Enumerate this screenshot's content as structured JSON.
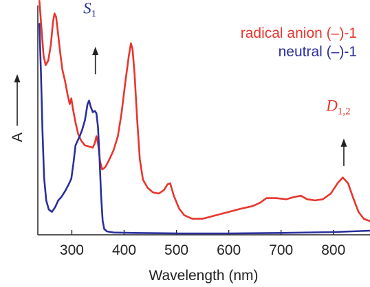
{
  "colors": {
    "series_red": "#e8352c",
    "series_blue": "#2a2f9c",
    "axis": "#222222",
    "text": "#222222"
  },
  "chart_data": {
    "type": "line",
    "xlabel": "Wavelength (nm)",
    "ylabel": "A",
    "xlim": [
      235,
      870
    ],
    "ylim": [
      0,
      1
    ],
    "x_ticks": [
      300,
      400,
      500,
      600,
      700,
      800
    ],
    "grid": false,
    "legend_position": "top-right",
    "series": [
      {
        "name": "radical anion (–)-1",
        "color": "#e8352c",
        "points": [
          [
            238,
            1.02
          ],
          [
            242,
            0.9
          ],
          [
            246,
            0.78
          ],
          [
            250,
            0.74
          ],
          [
            255,
            0.76
          ],
          [
            260,
            0.83
          ],
          [
            264,
            0.93
          ],
          [
            267,
            0.965
          ],
          [
            270,
            0.95
          ],
          [
            274,
            0.87
          ],
          [
            278,
            0.79
          ],
          [
            282,
            0.72
          ],
          [
            287,
            0.67
          ],
          [
            292,
            0.61
          ],
          [
            296,
            0.57
          ],
          [
            299,
            0.595
          ],
          [
            302,
            0.55
          ],
          [
            307,
            0.49
          ],
          [
            312,
            0.44
          ],
          [
            318,
            0.41
          ],
          [
            325,
            0.39
          ],
          [
            333,
            0.385
          ],
          [
            340,
            0.38
          ],
          [
            344,
            0.4
          ],
          [
            347,
            0.43
          ],
          [
            350,
            0.4
          ],
          [
            354,
            0.32
          ],
          [
            358,
            0.285
          ],
          [
            364,
            0.295
          ],
          [
            372,
            0.33
          ],
          [
            380,
            0.37
          ],
          [
            388,
            0.43
          ],
          [
            395,
            0.53
          ],
          [
            402,
            0.66
          ],
          [
            409,
            0.78
          ],
          [
            413,
            0.835
          ],
          [
            416,
            0.81
          ],
          [
            420,
            0.7
          ],
          [
            425,
            0.5
          ],
          [
            430,
            0.33
          ],
          [
            436,
            0.24
          ],
          [
            445,
            0.205
          ],
          [
            455,
            0.185
          ],
          [
            466,
            0.18
          ],
          [
            476,
            0.195
          ],
          [
            483,
            0.22
          ],
          [
            488,
            0.225
          ],
          [
            495,
            0.17
          ],
          [
            505,
            0.115
          ],
          [
            515,
            0.085
          ],
          [
            530,
            0.07
          ],
          [
            550,
            0.07
          ],
          [
            575,
            0.085
          ],
          [
            600,
            0.1
          ],
          [
            625,
            0.115
          ],
          [
            645,
            0.125
          ],
          [
            660,
            0.14
          ],
          [
            672,
            0.16
          ],
          [
            690,
            0.16
          ],
          [
            710,
            0.155
          ],
          [
            725,
            0.165
          ],
          [
            738,
            0.17
          ],
          [
            750,
            0.155
          ],
          [
            765,
            0.15
          ],
          [
            780,
            0.155
          ],
          [
            795,
            0.18
          ],
          [
            808,
            0.225
          ],
          [
            818,
            0.25
          ],
          [
            828,
            0.225
          ],
          [
            838,
            0.16
          ],
          [
            848,
            0.1
          ],
          [
            858,
            0.07
          ],
          [
            870,
            0.06
          ]
        ]
      },
      {
        "name": "neutral (–)-1",
        "color": "#2a2f9c",
        "points": [
          [
            238,
            0.92
          ],
          [
            241,
            0.7
          ],
          [
            244,
            0.45
          ],
          [
            247,
            0.25
          ],
          [
            251,
            0.15
          ],
          [
            256,
            0.11
          ],
          [
            262,
            0.1
          ],
          [
            268,
            0.12
          ],
          [
            274,
            0.15
          ],
          [
            280,
            0.165
          ],
          [
            287,
            0.19
          ],
          [
            294,
            0.22
          ],
          [
            299,
            0.245
          ],
          [
            303,
            0.31
          ],
          [
            307,
            0.39
          ],
          [
            311,
            0.41
          ],
          [
            315,
            0.43
          ],
          [
            320,
            0.46
          ],
          [
            325,
            0.5
          ],
          [
            330,
            0.57
          ],
          [
            333,
            0.585
          ],
          [
            336,
            0.56
          ],
          [
            340,
            0.535
          ],
          [
            344,
            0.54
          ],
          [
            347,
            0.53
          ],
          [
            350,
            0.47
          ],
          [
            353,
            0.33
          ],
          [
            356,
            0.17
          ],
          [
            359,
            0.06
          ],
          [
            362,
            0.025
          ],
          [
            367,
            0.015
          ],
          [
            380,
            0.01
          ],
          [
            420,
            0.008
          ],
          [
            500,
            0.006
          ],
          [
            600,
            0.006
          ],
          [
            700,
            0.008
          ],
          [
            800,
            0.012
          ],
          [
            870,
            0.018
          ]
        ]
      }
    ],
    "annotations": [
      {
        "main": "S",
        "sub": "1",
        "color": "#2a2f9c",
        "x": 345,
        "y_text": 0.965,
        "arrow_from": 0.7,
        "arrow_to": 0.82
      },
      {
        "main": "D",
        "sub": "1,2",
        "color": "#e8352c",
        "x": 820,
        "y_text": 0.54,
        "arrow_from": 0.3,
        "arrow_to": 0.42
      }
    ]
  }
}
